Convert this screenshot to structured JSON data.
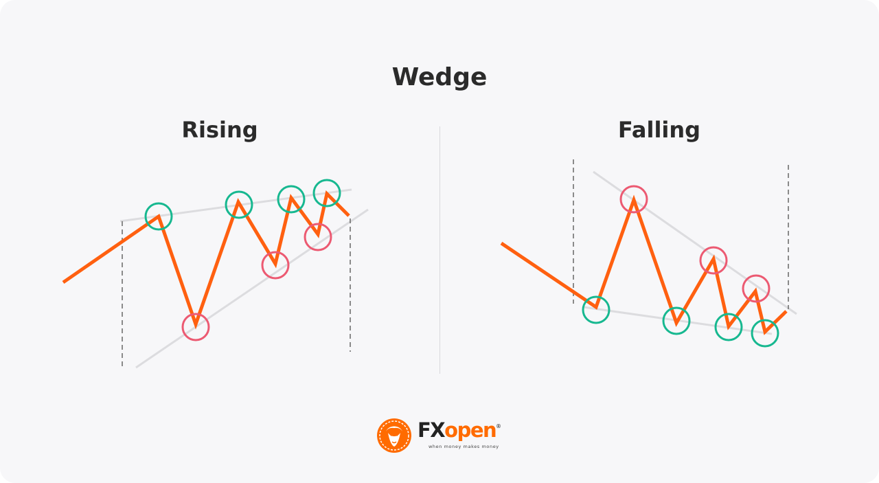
{
  "title": "Wedge",
  "panels": {
    "rising": {
      "label": "Rising"
    },
    "falling": {
      "label": "Falling"
    }
  },
  "colors": {
    "price_line": "#ff6010",
    "support_circle": "#17b890",
    "resistance_circle": "#ec5a72",
    "trend_line": "#dcdcdf",
    "boundary_dash": "#666666"
  },
  "brand": {
    "fx": "FX",
    "open": "open",
    "registered": "®",
    "tagline": "when money makes money"
  }
}
